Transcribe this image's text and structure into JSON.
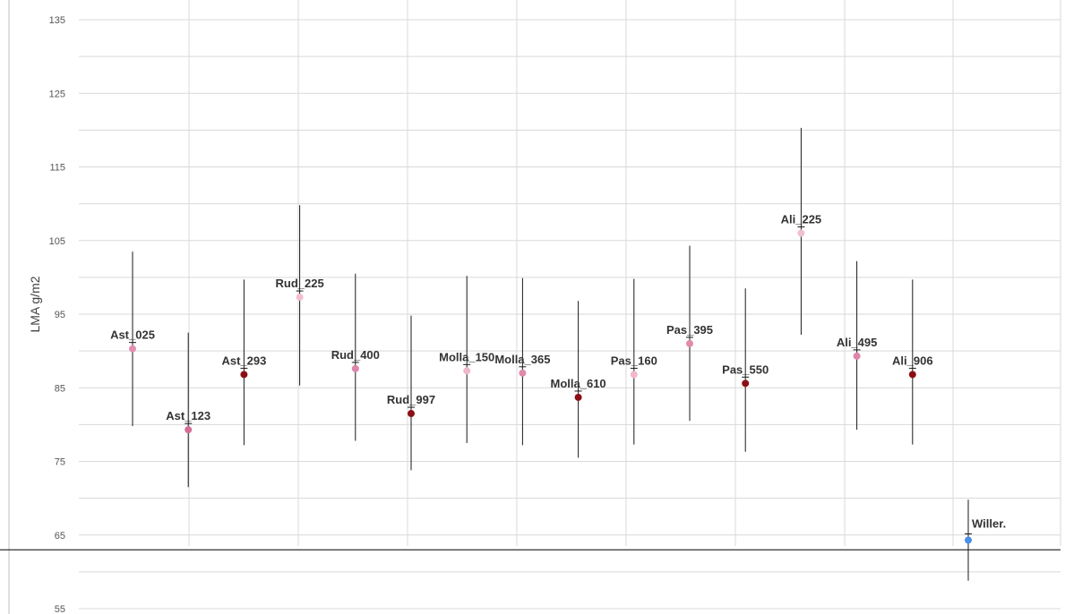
{
  "chart_data": {
    "type": "scatter",
    "title": "",
    "xlabel": "",
    "ylabel": "LMA g/m2",
    "ylim": [
      55,
      135
    ],
    "yticks": [
      "55",
      "65",
      "75",
      "85",
      "95",
      "105",
      "115",
      "125",
      "135"
    ],
    "grid": true,
    "reference_line_y": 63,
    "points": [
      {
        "label": "Ast_025",
        "x": 1,
        "y": 90.3,
        "err_low": 79.8,
        "err_high": 103.5,
        "color": "#e38fb2"
      },
      {
        "label": "Ast_123",
        "x": 2,
        "y": 79.3,
        "err_low": 71.5,
        "err_high": 92.5,
        "color": "#d56e97"
      },
      {
        "label": "Ast_293",
        "x": 3,
        "y": 86.8,
        "err_low": 77.2,
        "err_high": 99.7,
        "color": "#8b0f14"
      },
      {
        "label": "Rud_225",
        "x": 4,
        "y": 97.3,
        "err_low": 85.3,
        "err_high": 109.8,
        "color": "#f2bfd2"
      },
      {
        "label": "Rud_400",
        "x": 5,
        "y": 87.6,
        "err_low": 77.8,
        "err_high": 100.5,
        "color": "#de85aa"
      },
      {
        "label": "Rud_997",
        "x": 6,
        "y": 81.5,
        "err_low": 73.8,
        "err_high": 94.8,
        "color": "#8b0f14"
      },
      {
        "label": "Molla_150",
        "x": 7,
        "y": 87.3,
        "err_low": 77.5,
        "err_high": 100.2,
        "color": "#f0b7cd"
      },
      {
        "label": "Molla_365",
        "x": 8,
        "y": 87.0,
        "err_low": 77.2,
        "err_high": 99.9,
        "color": "#e08aac"
      },
      {
        "label": "Molla_610",
        "x": 9,
        "y": 83.7,
        "err_low": 75.5,
        "err_high": 96.8,
        "color": "#8b0f14"
      },
      {
        "label": "Pas_160",
        "x": 10,
        "y": 86.8,
        "err_low": 77.3,
        "err_high": 99.8,
        "color": "#f0b7cd"
      },
      {
        "label": "Pas_395",
        "x": 11,
        "y": 91.0,
        "err_low": 80.5,
        "err_high": 104.3,
        "color": "#e08aac"
      },
      {
        "label": "Pas_550",
        "x": 12,
        "y": 85.6,
        "err_low": 76.3,
        "err_high": 98.5,
        "color": "#8b0f14"
      },
      {
        "label": "Ali_225",
        "x": 13,
        "y": 106.0,
        "err_low": 92.2,
        "err_high": 120.3,
        "color": "#f2bfd2"
      },
      {
        "label": "Ali_495",
        "x": 14,
        "y": 89.3,
        "err_low": 79.3,
        "err_high": 102.2,
        "color": "#de85aa"
      },
      {
        "label": "Ali_906",
        "x": 15,
        "y": 86.8,
        "err_low": 77.3,
        "err_high": 99.7,
        "color": "#8b0f14"
      },
      {
        "label": "Willer.",
        "x": 16,
        "y": 64.3,
        "err_low": 58.8,
        "err_high": 69.8,
        "color": "#4a8fe8"
      }
    ]
  }
}
